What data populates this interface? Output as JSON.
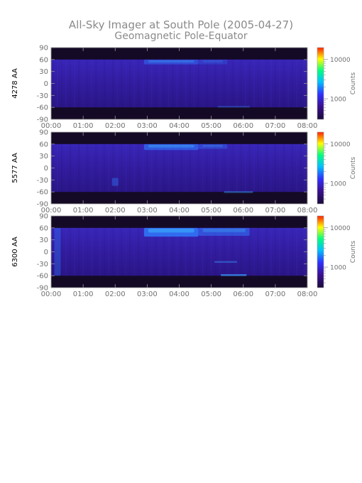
{
  "figure": {
    "title": "All-Sky Imager at South Pole (2005-04-27)",
    "subtitle": "Geomagnetic Pole-Equator"
  },
  "chart_data": [
    {
      "type": "heatmap",
      "ylabel": "4278 AA",
      "x_ticks": [
        "00:00",
        "01:00",
        "02:00",
        "03:00",
        "04:00",
        "05:00",
        "06:00",
        "07:00",
        "08:00"
      ],
      "y_ticks": [
        90,
        60,
        30,
        0,
        -30,
        -60,
        -90
      ],
      "xlim_hours": [
        0,
        8
      ],
      "ylim": [
        -90,
        90
      ],
      "colorbar": {
        "label": "Counts",
        "ticks": [
          10000,
          1000
        ],
        "scale": "log",
        "colors": [
          "#1a0a3a",
          "#3a1090",
          "#3030ff",
          "#00c0ff",
          "#00ff80",
          "#ffff00",
          "#ff2000"
        ]
      },
      "data_band": [
        -60,
        60
      ],
      "bright_regions": [
        {
          "t": [
            2.9,
            4.6
          ],
          "lat": [
            48,
            60
          ],
          "intensity": 0.45
        },
        {
          "t": [
            4.6,
            5.5
          ],
          "lat": [
            48,
            60
          ],
          "intensity": 0.25
        }
      ],
      "streaks": [
        {
          "t": [
            5.2,
            6.2
          ],
          "lat": -58,
          "intensity": 0.25
        }
      ]
    },
    {
      "type": "heatmap",
      "ylabel": "5577 AA",
      "x_ticks": [
        "00:00",
        "01:00",
        "02:00",
        "03:00",
        "04:00",
        "05:00",
        "06:00",
        "07:00",
        "08:00"
      ],
      "y_ticks": [
        90,
        60,
        30,
        0,
        -30,
        -60,
        -90
      ],
      "xlim_hours": [
        0,
        8
      ],
      "ylim": [
        -90,
        90
      ],
      "colorbar": {
        "label": "Counts",
        "ticks": [
          10000,
          1000
        ],
        "scale": "log",
        "colors": [
          "#1a0a3a",
          "#3a1090",
          "#3030ff",
          "#00c0ff",
          "#00ff80",
          "#ffff00",
          "#ff2000"
        ]
      },
      "data_band": [
        -60,
        60
      ],
      "bright_regions": [
        {
          "t": [
            2.9,
            4.6
          ],
          "lat": [
            45,
            60
          ],
          "intensity": 0.6
        },
        {
          "t": [
            4.6,
            5.5
          ],
          "lat": [
            48,
            60
          ],
          "intensity": 0.35
        },
        {
          "t": [
            1.9,
            2.1
          ],
          "lat": [
            -45,
            -25
          ],
          "intensity": 0.4
        }
      ],
      "streaks": [
        {
          "t": [
            5.4,
            6.3
          ],
          "lat": -60,
          "intensity": 0.45
        }
      ]
    },
    {
      "type": "heatmap",
      "ylabel": "6300 AA",
      "x_ticks": [
        "00:00",
        "01:00",
        "02:00",
        "03:00",
        "04:00",
        "05:00",
        "06:00",
        "07:00",
        "08:00"
      ],
      "y_ticks": [
        90,
        60,
        30,
        0,
        -30,
        -60,
        -90
      ],
      "xlim_hours": [
        0,
        8
      ],
      "ylim": [
        -90,
        90
      ],
      "colorbar": {
        "label": "Counts",
        "ticks": [
          10000,
          1000
        ],
        "scale": "log",
        "colors": [
          "#1a0a3a",
          "#3a1090",
          "#3030ff",
          "#00c0ff",
          "#00ff80",
          "#ffff00",
          "#ff2000"
        ]
      },
      "data_band": [
        -60,
        60
      ],
      "bright_regions": [
        {
          "t": [
            2.9,
            4.6
          ],
          "lat": [
            38,
            60
          ],
          "intensity": 0.8
        },
        {
          "t": [
            4.6,
            6.2
          ],
          "lat": [
            40,
            60
          ],
          "intensity": 0.5
        },
        {
          "t": [
            0.1,
            0.3
          ],
          "lat": [
            -60,
            60
          ],
          "intensity": 0.35
        }
      ],
      "streaks": [
        {
          "t": [
            5.1,
            5.8
          ],
          "lat": -25,
          "intensity": 0.4
        },
        {
          "t": [
            5.3,
            6.1
          ],
          "lat": -58,
          "intensity": 0.7
        }
      ]
    }
  ]
}
